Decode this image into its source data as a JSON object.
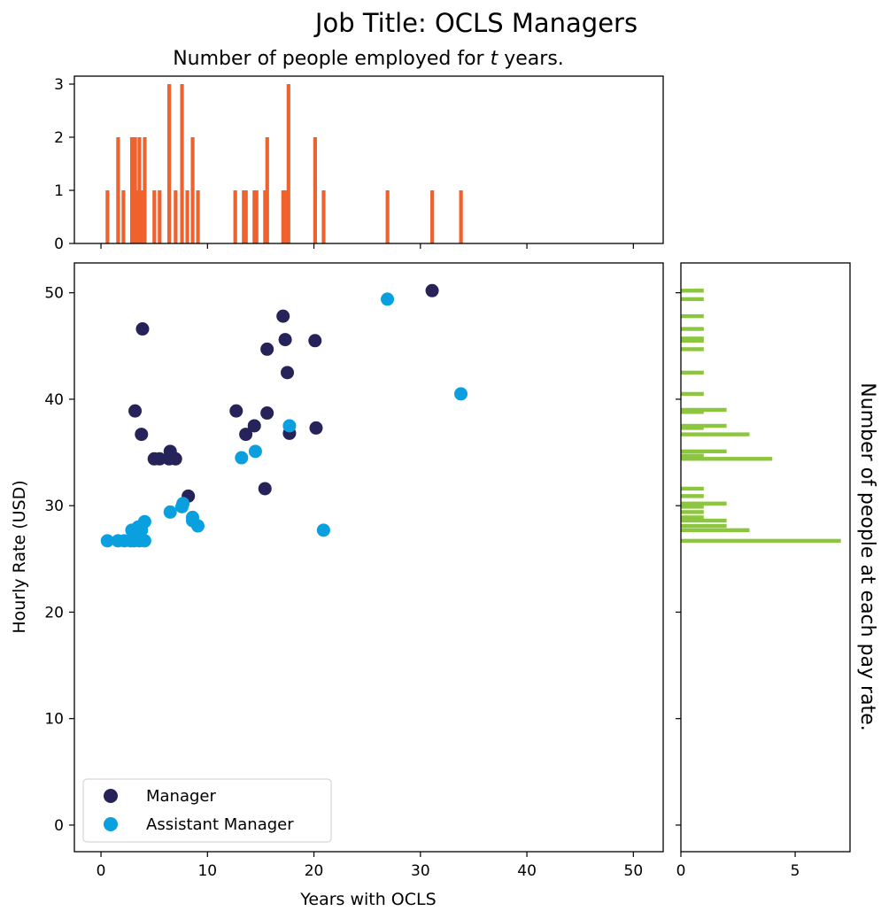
{
  "figure": {
    "suptitle": "Job Title: OCLS Managers"
  },
  "chart_data": [
    {
      "id": "top-histogram",
      "type": "bar",
      "title_prefix": "Number of people employed for ",
      "title_var": "t",
      "title_suffix": " years.",
      "xlim": [
        -2.5,
        52.8
      ],
      "ylim": [
        0,
        3.15
      ],
      "xticks": [
        0,
        10,
        20,
        30,
        40,
        50
      ],
      "yticks": [
        0,
        1,
        2,
        3
      ],
      "x_tick_labels_visible": false,
      "bar_color": "#f0622d",
      "bars": [
        {
          "x": 0.6,
          "count": 1
        },
        {
          "x": 1.6,
          "count": 2
        },
        {
          "x": 2.1,
          "count": 1
        },
        {
          "x": 2.9,
          "count": 2
        },
        {
          "x": 3.2,
          "count": 2
        },
        {
          "x": 3.4,
          "count": 1
        },
        {
          "x": 3.6,
          "count": 2
        },
        {
          "x": 3.8,
          "count": 1
        },
        {
          "x": 4.1,
          "count": 2
        },
        {
          "x": 5.0,
          "count": 1
        },
        {
          "x": 5.5,
          "count": 1
        },
        {
          "x": 6.4,
          "count": 3
        },
        {
          "x": 7.0,
          "count": 1
        },
        {
          "x": 7.6,
          "count": 3
        },
        {
          "x": 8.1,
          "count": 1
        },
        {
          "x": 8.6,
          "count": 2
        },
        {
          "x": 9.1,
          "count": 1
        },
        {
          "x": 12.6,
          "count": 1
        },
        {
          "x": 13.4,
          "count": 1
        },
        {
          "x": 13.6,
          "count": 1
        },
        {
          "x": 14.4,
          "count": 1
        },
        {
          "x": 14.6,
          "count": 1
        },
        {
          "x": 15.4,
          "count": 1
        },
        {
          "x": 15.6,
          "count": 2
        },
        {
          "x": 17.1,
          "count": 1
        },
        {
          "x": 17.3,
          "count": 1
        },
        {
          "x": 17.6,
          "count": 3
        },
        {
          "x": 20.1,
          "count": 2
        },
        {
          "x": 20.9,
          "count": 1
        },
        {
          "x": 26.9,
          "count": 1
        },
        {
          "x": 31.1,
          "count": 1
        },
        {
          "x": 33.8,
          "count": 1
        }
      ]
    },
    {
      "id": "scatter",
      "type": "scatter",
      "xlabel": "Years with OCLS",
      "ylabel": "Hourly Rate (USD)",
      "xlim": [
        -2.5,
        52.8
      ],
      "ylim": [
        -2.5,
        52.8
      ],
      "xticks": [
        0,
        10,
        20,
        30,
        40,
        50
      ],
      "yticks": [
        0,
        10,
        20,
        30,
        40,
        50
      ],
      "legend_location": "lower-left",
      "series": [
        {
          "name": "Manager",
          "color": "#25235a",
          "points": [
            [
              3.2,
              38.9
            ],
            [
              3.8,
              36.7
            ],
            [
              3.9,
              46.6
            ],
            [
              5.0,
              34.4
            ],
            [
              5.5,
              34.4
            ],
            [
              6.4,
              34.4
            ],
            [
              6.5,
              35.1
            ],
            [
              7.0,
              34.4
            ],
            [
              8.2,
              30.9
            ],
            [
              12.7,
              38.9
            ],
            [
              13.6,
              36.7
            ],
            [
              14.4,
              37.5
            ],
            [
              15.4,
              31.6
            ],
            [
              15.6,
              38.7
            ],
            [
              15.6,
              44.7
            ],
            [
              17.1,
              47.8
            ],
            [
              17.3,
              45.6
            ],
            [
              17.5,
              42.5
            ],
            [
              17.7,
              36.8
            ],
            [
              20.1,
              45.5
            ],
            [
              20.2,
              37.3
            ],
            [
              31.1,
              50.2
            ]
          ]
        },
        {
          "name": "Assistant Manager",
          "color": "#0aa0e0",
          "points": [
            [
              0.6,
              26.7
            ],
            [
              1.6,
              26.7
            ],
            [
              2.2,
              26.7
            ],
            [
              2.8,
              26.7
            ],
            [
              2.9,
              27.7
            ],
            [
              3.1,
              26.7
            ],
            [
              3.3,
              27.4
            ],
            [
              3.4,
              27.6
            ],
            [
              3.5,
              28.0
            ],
            [
              3.6,
              26.7
            ],
            [
              3.8,
              27.7
            ],
            [
              4.1,
              26.7
            ],
            [
              4.1,
              28.5
            ],
            [
              6.5,
              29.4
            ],
            [
              7.6,
              29.9
            ],
            [
              7.7,
              30.2
            ],
            [
              8.6,
              28.6
            ],
            [
              8.6,
              28.9
            ],
            [
              9.1,
              28.1
            ],
            [
              13.2,
              34.5
            ],
            [
              14.5,
              35.1
            ],
            [
              17.7,
              37.5
            ],
            [
              20.9,
              27.7
            ],
            [
              26.9,
              49.4
            ],
            [
              33.8,
              40.5
            ]
          ]
        }
      ]
    },
    {
      "id": "right-histogram",
      "type": "bar",
      "orientation": "horizontal",
      "ylabel": "Number of people at each pay rate.",
      "xlim": [
        0,
        7.4
      ],
      "ylim": [
        -2.5,
        52.8
      ],
      "xticks": [
        0,
        5
      ],
      "yticks": [
        0,
        10,
        20,
        30,
        40,
        50
      ],
      "y_tick_labels_visible": false,
      "bar_color": "#8cc63f",
      "bars": [
        {
          "y": 26.7,
          "count": 7
        },
        {
          "y": 27.7,
          "count": 3
        },
        {
          "y": 28.1,
          "count": 2
        },
        {
          "y": 28.6,
          "count": 2
        },
        {
          "y": 28.9,
          "count": 1
        },
        {
          "y": 29.4,
          "count": 1
        },
        {
          "y": 29.9,
          "count": 1
        },
        {
          "y": 30.2,
          "count": 2
        },
        {
          "y": 30.9,
          "count": 1
        },
        {
          "y": 31.6,
          "count": 1
        },
        {
          "y": 34.4,
          "count": 4
        },
        {
          "y": 34.7,
          "count": 1
        },
        {
          "y": 35.1,
          "count": 2
        },
        {
          "y": 36.7,
          "count": 3
        },
        {
          "y": 37.3,
          "count": 1
        },
        {
          "y": 37.5,
          "count": 2
        },
        {
          "y": 38.8,
          "count": 1
        },
        {
          "y": 39.0,
          "count": 2
        },
        {
          "y": 40.5,
          "count": 1
        },
        {
          "y": 42.5,
          "count": 1
        },
        {
          "y": 44.7,
          "count": 1
        },
        {
          "y": 45.5,
          "count": 1
        },
        {
          "y": 45.7,
          "count": 1
        },
        {
          "y": 46.6,
          "count": 1
        },
        {
          "y": 47.8,
          "count": 1
        },
        {
          "y": 49.4,
          "count": 1
        },
        {
          "y": 50.2,
          "count": 1
        }
      ]
    }
  ]
}
